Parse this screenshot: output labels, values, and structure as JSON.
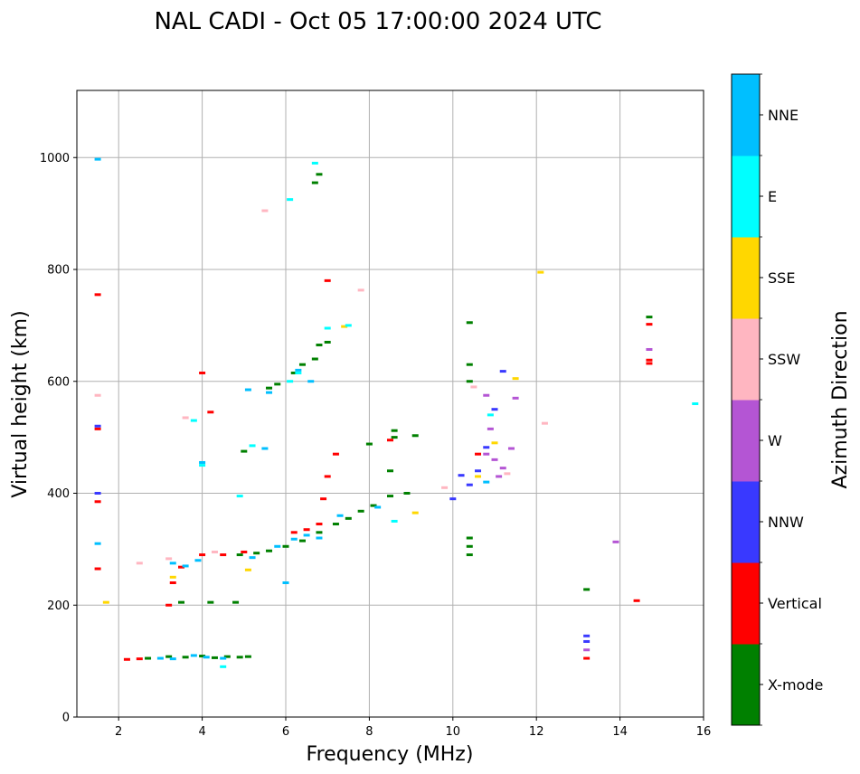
{
  "chart_data": {
    "type": "scatter",
    "title": "NAL CADI - Oct 05 17:00:00 2024 UTC",
    "xlabel": "Frequency (MHz)",
    "ylabel": "Virtual height (km)",
    "xlim": [
      1,
      16
    ],
    "ylim": [
      0,
      1120
    ],
    "xticks": [
      2,
      4,
      6,
      8,
      10,
      12,
      14,
      16
    ],
    "yticks": [
      0,
      200,
      400,
      600,
      800,
      1000
    ],
    "grid": true,
    "colorbar": {
      "label": "Azimuth Direction",
      "categories": [
        {
          "name": "X-mode",
          "color": "#008000"
        },
        {
          "name": "Vertical",
          "color": "#ff0000"
        },
        {
          "name": "NNW",
          "color": "#3939ff"
        },
        {
          "name": "W",
          "color": "#b455d4"
        },
        {
          "name": "SSW",
          "color": "#ffb6c1"
        },
        {
          "name": "SSE",
          "color": "#ffd700"
        },
        {
          "name": "E",
          "color": "#00ffff"
        },
        {
          "name": "NNE",
          "color": "#00bfff"
        }
      ]
    },
    "series": [
      {
        "name": "X-mode",
        "points": [
          [
            2.7,
            105
          ],
          [
            3.2,
            108
          ],
          [
            3.6,
            107
          ],
          [
            4.0,
            109
          ],
          [
            4.3,
            106
          ],
          [
            4.6,
            108
          ],
          [
            4.9,
            107
          ],
          [
            5.1,
            108
          ],
          [
            3.5,
            205
          ],
          [
            4.2,
            205
          ],
          [
            4.8,
            205
          ],
          [
            4.9,
            290
          ],
          [
            5.3,
            293
          ],
          [
            5.6,
            297
          ],
          [
            6.0,
            305
          ],
          [
            6.4,
            315
          ],
          [
            6.8,
            330
          ],
          [
            7.2,
            345
          ],
          [
            7.5,
            355
          ],
          [
            7.8,
            368
          ],
          [
            8.1,
            378
          ],
          [
            8.5,
            395
          ],
          [
            8.9,
            400
          ],
          [
            8.5,
            440
          ],
          [
            8.6,
            500
          ],
          [
            8.6,
            512
          ],
          [
            9.1,
            503
          ],
          [
            8.0,
            488
          ],
          [
            5.6,
            588
          ],
          [
            5.8,
            595
          ],
          [
            6.2,
            615
          ],
          [
            6.4,
            630
          ],
          [
            6.7,
            640
          ],
          [
            6.8,
            665
          ],
          [
            7.0,
            670
          ],
          [
            6.7,
            955
          ],
          [
            6.8,
            970
          ],
          [
            10.4,
            320
          ],
          [
            10.4,
            305
          ],
          [
            10.4,
            290
          ],
          [
            10.4,
            600
          ],
          [
            10.4,
            630
          ],
          [
            10.4,
            705
          ],
          [
            13.2,
            228
          ],
          [
            14.7,
            715
          ],
          [
            5.0,
            475
          ]
        ]
      },
      {
        "name": "Vertical",
        "points": [
          [
            2.2,
            103
          ],
          [
            2.5,
            104
          ],
          [
            3.2,
            200
          ],
          [
            1.5,
            385
          ],
          [
            1.5,
            265
          ],
          [
            1.5,
            515
          ],
          [
            1.5,
            755
          ],
          [
            3.5,
            268
          ],
          [
            3.3,
            240
          ],
          [
            4.0,
            290
          ],
          [
            4.0,
            615
          ],
          [
            4.2,
            545
          ],
          [
            4.5,
            290
          ],
          [
            5.0,
            295
          ],
          [
            6.2,
            330
          ],
          [
            6.5,
            335
          ],
          [
            6.8,
            345
          ],
          [
            6.9,
            390
          ],
          [
            7.0,
            430
          ],
          [
            7.2,
            470
          ],
          [
            8.5,
            495
          ],
          [
            7.0,
            780
          ],
          [
            10.6,
            470
          ],
          [
            14.7,
            632
          ],
          [
            14.7,
            638
          ],
          [
            14.7,
            702
          ],
          [
            14.4,
            208
          ],
          [
            13.2,
            105
          ]
        ]
      },
      {
        "name": "NNW",
        "points": [
          [
            10.0,
            390
          ],
          [
            10.4,
            415
          ],
          [
            10.6,
            440
          ],
          [
            11.0,
            550
          ],
          [
            11.2,
            618
          ],
          [
            13.2,
            135
          ],
          [
            13.2,
            145
          ],
          [
            1.5,
            520
          ],
          [
            1.5,
            400
          ],
          [
            10.2,
            432
          ],
          [
            10.8,
            482
          ]
        ]
      },
      {
        "name": "W",
        "points": [
          [
            10.8,
            470
          ],
          [
            11.0,
            460
          ],
          [
            11.2,
            445
          ],
          [
            11.4,
            480
          ],
          [
            11.1,
            430
          ],
          [
            13.9,
            313
          ],
          [
            14.7,
            657
          ],
          [
            10.8,
            575
          ],
          [
            11.5,
            570
          ],
          [
            10.9,
            515
          ],
          [
            13.2,
            120
          ]
        ]
      },
      {
        "name": "SSW",
        "points": [
          [
            3.2,
            283
          ],
          [
            3.6,
            535
          ],
          [
            4.3,
            295
          ],
          [
            12.2,
            525
          ],
          [
            1.5,
            575
          ],
          [
            2.5,
            275
          ],
          [
            5.5,
            905
          ],
          [
            9.8,
            410
          ],
          [
            10.5,
            590
          ],
          [
            7.8,
            763
          ],
          [
            11.3,
            435
          ]
        ]
      },
      {
        "name": "SSE",
        "points": [
          [
            3.3,
            250
          ],
          [
            5.1,
            263
          ],
          [
            7.4,
            698
          ],
          [
            10.6,
            430
          ],
          [
            11.0,
            490
          ],
          [
            11.5,
            605
          ],
          [
            12.1,
            795
          ],
          [
            9.1,
            365
          ],
          [
            1.7,
            205
          ]
        ]
      },
      {
        "name": "E",
        "points": [
          [
            4.5,
            90
          ],
          [
            6.1,
            600
          ],
          [
            6.3,
            615
          ],
          [
            7.0,
            695
          ],
          [
            7.5,
            700
          ],
          [
            6.7,
            990
          ],
          [
            6.1,
            925
          ],
          [
            8.6,
            350
          ],
          [
            10.9,
            540
          ],
          [
            15.8,
            560
          ],
          [
            4.0,
            450
          ],
          [
            5.2,
            485
          ],
          [
            4.9,
            395
          ],
          [
            3.8,
            530
          ]
        ]
      },
      {
        "name": "NNE",
        "points": [
          [
            3.0,
            105
          ],
          [
            3.3,
            104
          ],
          [
            3.8,
            110
          ],
          [
            4.1,
            107
          ],
          [
            4.5,
            105
          ],
          [
            3.3,
            275
          ],
          [
            3.6,
            270
          ],
          [
            3.9,
            280
          ],
          [
            5.2,
            285
          ],
          [
            5.8,
            305
          ],
          [
            6.2,
            318
          ],
          [
            6.5,
            325
          ],
          [
            6.8,
            320
          ],
          [
            5.1,
            585
          ],
          [
            5.6,
            580
          ],
          [
            6.3,
            620
          ],
          [
            6.6,
            600
          ],
          [
            8.2,
            375
          ],
          [
            1.5,
            310
          ],
          [
            1.5,
            997
          ],
          [
            4.0,
            455
          ],
          [
            5.5,
            480
          ],
          [
            7.3,
            360
          ],
          [
            6.0,
            240
          ],
          [
            10.8,
            420
          ]
        ]
      }
    ]
  }
}
